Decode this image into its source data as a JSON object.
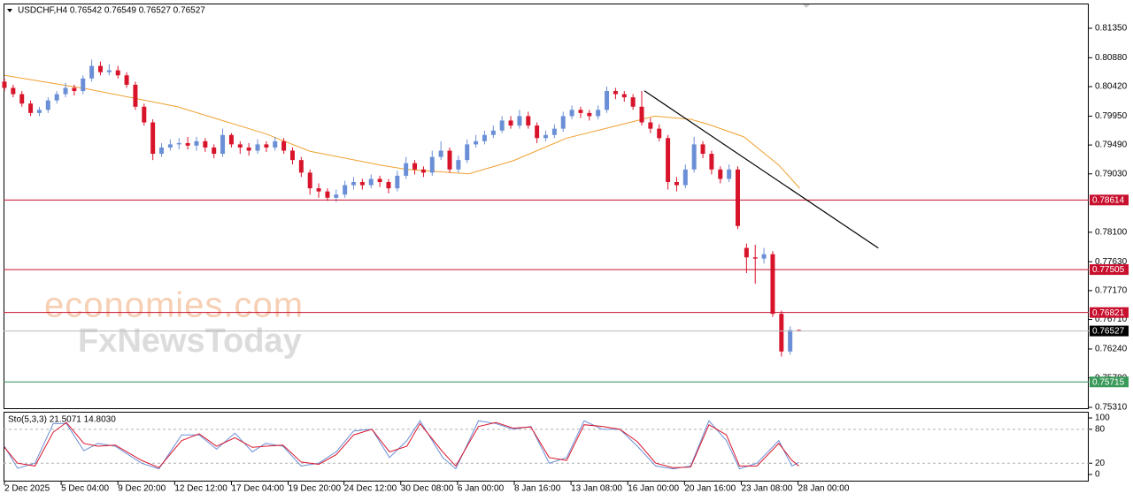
{
  "chart_data": [
    {
      "type": "candlestick",
      "title": "USDCHF,H4  0.76542 0.76549 0.76527 0.76527",
      "up_color": "#6b8fd6",
      "down_color": "#d8142b",
      "xlim": [
        -0.1,
        124.2
      ],
      "ylim": [
        0.75282,
        0.81744
      ],
      "yticks": [
        {
          "value": 0.8135,
          "label": "0.81350"
        },
        {
          "value": 0.8088,
          "label": "0.80880"
        },
        {
          "value": 0.8042,
          "label": "0.80420"
        },
        {
          "value": 0.7995,
          "label": "0.79950"
        },
        {
          "value": 0.7949,
          "label": "0.79490"
        },
        {
          "value": 0.7903,
          "label": "0.79030"
        },
        {
          "value": 0.781,
          "label": "0.78100"
        },
        {
          "value": 0.7763,
          "label": "0.77630"
        },
        {
          "value": 0.7717,
          "label": "0.77170"
        },
        {
          "value": 0.7671,
          "label": "0.76710"
        },
        {
          "value": 0.7624,
          "label": "0.76240"
        },
        {
          "value": 0.7578,
          "label": "0.75780"
        },
        {
          "value": 0.7531,
          "label": "0.75310"
        }
      ],
      "ohlc": [
        [
          0.805,
          0.8055,
          0.8035,
          0.804
        ],
        [
          0.804,
          0.8045,
          0.8025,
          0.803
        ],
        [
          0.803,
          0.8035,
          0.801,
          0.8015
        ],
        [
          0.8015,
          0.802,
          0.7995,
          0.8
        ],
        [
          0.8,
          0.801,
          0.7995,
          0.8005
        ],
        [
          0.8005,
          0.8025,
          0.8,
          0.802
        ],
        [
          0.802,
          0.8035,
          0.8015,
          0.803
        ],
        [
          0.803,
          0.8048,
          0.8025,
          0.804
        ],
        [
          0.804,
          0.8045,
          0.8028,
          0.8035
        ],
        [
          0.8035,
          0.806,
          0.803,
          0.8055
        ],
        [
          0.8055,
          0.8085,
          0.805,
          0.8075
        ],
        [
          0.8075,
          0.8082,
          0.806,
          0.8065
        ],
        [
          0.8065,
          0.8078,
          0.806,
          0.8068
        ],
        [
          0.8068,
          0.8075,
          0.8055,
          0.806
        ],
        [
          0.806,
          0.8065,
          0.804,
          0.8045
        ],
        [
          0.8045,
          0.805,
          0.8005,
          0.801
        ],
        [
          0.801,
          0.8015,
          0.798,
          0.7985
        ],
        [
          0.7985,
          0.799,
          0.7925,
          0.7935
        ],
        [
          0.7935,
          0.7952,
          0.793,
          0.7945
        ],
        [
          0.7945,
          0.7958,
          0.794,
          0.795
        ],
        [
          0.795,
          0.796,
          0.7942,
          0.7952
        ],
        [
          0.7952,
          0.7962,
          0.7942,
          0.7948
        ],
        [
          0.7948,
          0.7962,
          0.794,
          0.7955
        ],
        [
          0.7955,
          0.796,
          0.7938,
          0.7945
        ],
        [
          0.7945,
          0.795,
          0.7928,
          0.7935
        ],
        [
          0.7935,
          0.7975,
          0.793,
          0.7965
        ],
        [
          0.7965,
          0.7968,
          0.7945,
          0.795
        ],
        [
          0.795,
          0.7955,
          0.7935,
          0.7945
        ],
        [
          0.7945,
          0.7952,
          0.7932,
          0.794
        ],
        [
          0.794,
          0.7958,
          0.7935,
          0.795
        ],
        [
          0.795,
          0.7955,
          0.7938,
          0.7945
        ],
        [
          0.7945,
          0.7962,
          0.794,
          0.7955
        ],
        [
          0.7955,
          0.796,
          0.7935,
          0.794
        ],
        [
          0.794,
          0.7945,
          0.7918,
          0.7925
        ],
        [
          0.7925,
          0.793,
          0.7898,
          0.7905
        ],
        [
          0.7905,
          0.791,
          0.787,
          0.788
        ],
        [
          0.788,
          0.7888,
          0.7865,
          0.7875
        ],
        [
          0.7875,
          0.788,
          0.786,
          0.7865
        ],
        [
          0.7865,
          0.7878,
          0.7858,
          0.787
        ],
        [
          0.787,
          0.7892,
          0.7865,
          0.7885
        ],
        [
          0.7885,
          0.7898,
          0.7878,
          0.789
        ],
        [
          0.789,
          0.7895,
          0.7878,
          0.7885
        ],
        [
          0.7885,
          0.7902,
          0.788,
          0.7895
        ],
        [
          0.7895,
          0.79,
          0.7882,
          0.789
        ],
        [
          0.789,
          0.7895,
          0.7872,
          0.788
        ],
        [
          0.788,
          0.7908,
          0.7875,
          0.79
        ],
        [
          0.79,
          0.793,
          0.7895,
          0.792
        ],
        [
          0.792,
          0.7925,
          0.7902,
          0.791
        ],
        [
          0.791,
          0.7915,
          0.7898,
          0.7905
        ],
        [
          0.7905,
          0.794,
          0.79,
          0.793
        ],
        [
          0.793,
          0.7955,
          0.7925,
          0.794
        ],
        [
          0.794,
          0.7945,
          0.7905,
          0.791
        ],
        [
          0.791,
          0.7932,
          0.7905,
          0.7925
        ],
        [
          0.7925,
          0.7958,
          0.792,
          0.795
        ],
        [
          0.795,
          0.7965,
          0.7945,
          0.7955
        ],
        [
          0.7955,
          0.7972,
          0.795,
          0.7965
        ],
        [
          0.7965,
          0.798,
          0.796,
          0.7972
        ],
        [
          0.7972,
          0.7995,
          0.7968,
          0.7988
        ],
        [
          0.7988,
          0.7995,
          0.7975,
          0.798
        ],
        [
          0.798,
          0.8005,
          0.7975,
          0.7995
        ],
        [
          0.7995,
          0.8002,
          0.7975,
          0.798
        ],
        [
          0.798,
          0.7985,
          0.7952,
          0.796
        ],
        [
          0.796,
          0.7972,
          0.7955,
          0.7965
        ],
        [
          0.7965,
          0.7982,
          0.796,
          0.7975
        ],
        [
          0.7975,
          0.8002,
          0.797,
          0.7995
        ],
        [
          0.7995,
          0.8012,
          0.799,
          0.8005
        ],
        [
          0.8005,
          0.801,
          0.7992,
          0.8
        ],
        [
          0.8,
          0.8005,
          0.7988,
          0.7995
        ],
        [
          0.7995,
          0.8012,
          0.799,
          0.8005
        ],
        [
          0.8005,
          0.8042,
          0.8,
          0.8035
        ],
        [
          0.8035,
          0.804,
          0.8022,
          0.803
        ],
        [
          0.803,
          0.8035,
          0.8018,
          0.8025
        ],
        [
          0.8025,
          0.803,
          0.8005,
          0.801
        ],
        [
          0.801,
          0.8035,
          0.798,
          0.7985
        ],
        [
          0.7985,
          0.7992,
          0.7968,
          0.7975
        ],
        [
          0.7975,
          0.7982,
          0.7955,
          0.796
        ],
        [
          0.796,
          0.7965,
          0.7878,
          0.789
        ],
        [
          0.789,
          0.7898,
          0.7875,
          0.7885
        ],
        [
          0.7885,
          0.7918,
          0.788,
          0.791
        ],
        [
          0.791,
          0.7962,
          0.7905,
          0.795
        ],
        [
          0.795,
          0.7955,
          0.7928,
          0.7935
        ],
        [
          0.7935,
          0.794,
          0.7902,
          0.791
        ],
        [
          0.791,
          0.7915,
          0.7888,
          0.7895
        ],
        [
          0.7895,
          0.7918,
          0.789,
          0.791
        ],
        [
          0.791,
          0.7915,
          0.7815,
          0.782
        ],
        [
          0.7785,
          0.7792,
          0.7745,
          0.777
        ],
        [
          0.777,
          0.779,
          0.7728,
          0.7768
        ],
        [
          0.7768,
          0.7785,
          0.776,
          0.7775
        ],
        [
          0.7775,
          0.778,
          0.7675,
          0.768
        ],
        [
          0.768,
          0.7685,
          0.7612,
          0.762
        ],
        [
          0.762,
          0.766,
          0.7615,
          0.76542
        ],
        [
          0.76542,
          0.76549,
          0.76527,
          0.76527
        ]
      ],
      "moving_average": {
        "color": "#f0a030",
        "x": [
          0,
          9.6,
          19.8,
          29.9,
          35,
          43.1,
          46.1,
          53.2,
          58.3,
          64.4,
          70.5,
          74.5,
          78.6,
          80.6,
          84.7,
          88.7,
          91.1
        ],
        "values": [
          0.806,
          0.8038,
          0.801,
          0.7967,
          0.7939,
          0.7917,
          0.791,
          0.7903,
          0.7924,
          0.796,
          0.7981,
          0.7995,
          0.799,
          0.7982,
          0.7962,
          0.7917,
          0.788
        ]
      },
      "trendline": {
        "color": "#000000",
        "x": [
          73.3,
          100.1
        ],
        "values": [
          0.80353,
          0.77847
        ]
      },
      "levels": [
        {
          "value": 0.78614,
          "color": "#c8102e",
          "box": "#c8102e"
        },
        {
          "value": 0.77505,
          "color": "#c8102e",
          "box": "#c8102e"
        },
        {
          "value": 0.76821,
          "color": "#c8102e",
          "box": "#c8102e"
        },
        {
          "value": 0.76527,
          "color": "#b8b8b8",
          "box": "#000000"
        },
        {
          "value": 0.75715,
          "color": "#2e8b57",
          "box": "#3a9a5a"
        }
      ]
    },
    {
      "type": "line",
      "title": "Sto(5,3,3) 21.5071 14.8030",
      "xlim": [
        -0.1,
        124.2
      ],
      "ylim": [
        -12.5,
        111
      ],
      "yticks": [
        100,
        80,
        20,
        0
      ],
      "levels": [
        80,
        20
      ],
      "x": [
        0,
        1.5,
        3.5,
        5.6,
        7.1,
        9.1,
        10.7,
        12.7,
        15.7,
        17.7,
        20.3,
        22.3,
        24.3,
        26.4,
        28.4,
        29.9,
        31.9,
        34,
        36,
        38,
        40,
        42.1,
        44.1,
        46.1,
        47.6,
        50.2,
        51.7,
        54.3,
        56.3,
        58.3,
        60.3,
        62.4,
        64.4,
        66.4,
        68.5,
        70.5,
        72.5,
        74.6,
        76.6,
        78.6,
        80.7,
        82.7,
        84.2,
        86.2,
        88.7,
        90.2,
        91
      ],
      "series": [
        {
          "color": "#6b8fd6",
          "values": [
            50,
            11,
            20,
            90,
            90,
            42,
            55,
            50,
            20,
            10,
            70,
            70,
            45,
            73,
            40,
            55,
            50,
            15,
            20,
            40,
            77,
            80,
            30,
            60,
            95,
            30,
            10,
            95,
            90,
            80,
            85,
            20,
            30,
            95,
            80,
            80,
            50,
            15,
            10,
            15,
            95,
            60,
            10,
            20,
            60,
            15,
            21.5071
          ]
        },
        {
          "color": "#d8142b",
          "values": [
            48,
            20,
            15,
            75,
            92,
            55,
            50,
            52,
            25,
            12,
            60,
            72,
            50,
            65,
            48,
            50,
            52,
            22,
            18,
            35,
            70,
            80,
            40,
            50,
            90,
            40,
            15,
            85,
            92,
            82,
            84,
            30,
            25,
            88,
            85,
            80,
            58,
            20,
            12,
            13,
            88,
            70,
            15,
            15,
            55,
            25,
            14.803
          ]
        }
      ],
      "xticks": [
        {
          "value": 0,
          "label": "2 Dec 2025"
        },
        {
          "value": 6.5,
          "label": "5 Dec 04:00"
        },
        {
          "value": 13,
          "label": "9 Dec 20:00"
        },
        {
          "value": 19.5,
          "label": "12 Dec 12:00"
        },
        {
          "value": 26,
          "label": "17 Dec 04:00"
        },
        {
          "value": 32.5,
          "label": "19 Dec 20:00"
        },
        {
          "value": 38.9,
          "label": "24 Dec 12:00"
        },
        {
          "value": 45.4,
          "label": "30 Dec 08:00"
        },
        {
          "value": 51.9,
          "label": "6 Jan 00:00"
        },
        {
          "value": 58.4,
          "label": "8 Jan 16:00"
        },
        {
          "value": 64.9,
          "label": "13 Jan 08:00"
        },
        {
          "value": 71.4,
          "label": "16 Jan 00:00"
        },
        {
          "value": 77.9,
          "label": "20 Jan 16:00"
        },
        {
          "value": 84.4,
          "label": "23 Jan 08:00"
        },
        {
          "value": 90.9,
          "label": "28 Jan 00:00"
        }
      ]
    }
  ],
  "watermark": {
    "brand": "economies.com",
    "source": "FxNewsToday"
  }
}
